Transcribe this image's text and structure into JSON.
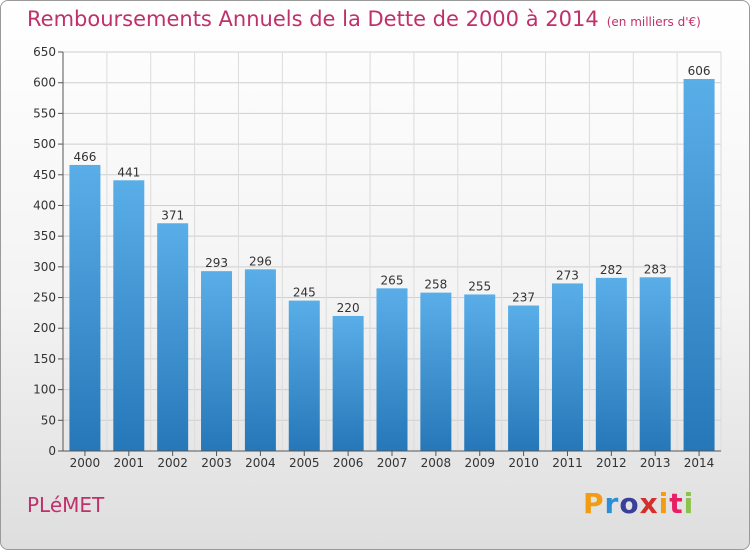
{
  "title": "Remboursements Annuels de la Dette de 2000 à 2014",
  "subtitle": "(en milliers d'€)",
  "commune": "PLéMET",
  "brand": {
    "letters": [
      "P",
      "r",
      "o",
      "x",
      "i",
      "t",
      "i"
    ],
    "colors": [
      "#f39c12",
      "#2a8fd6",
      "#3a3f9a",
      "#d32f2f",
      "#f39c12",
      "#e91e63",
      "#8bc34a"
    ]
  },
  "colors": {
    "bar_light": "#5aaee8",
    "bar_dark": "#2677b8",
    "title": "#c0306a"
  },
  "chart_data": {
    "type": "bar",
    "categories": [
      "2000",
      "2001",
      "2002",
      "2003",
      "2004",
      "2005",
      "2006",
      "2007",
      "2008",
      "2009",
      "2010",
      "2011",
      "2012",
      "2013",
      "2014"
    ],
    "values": [
      466,
      441,
      371,
      293,
      296,
      245,
      220,
      265,
      258,
      255,
      237,
      273,
      282,
      283,
      606
    ],
    "ylim": [
      0,
      650
    ],
    "yticks": [
      0,
      50,
      100,
      150,
      200,
      250,
      300,
      350,
      400,
      450,
      500,
      550,
      600,
      650
    ],
    "grid": true
  }
}
